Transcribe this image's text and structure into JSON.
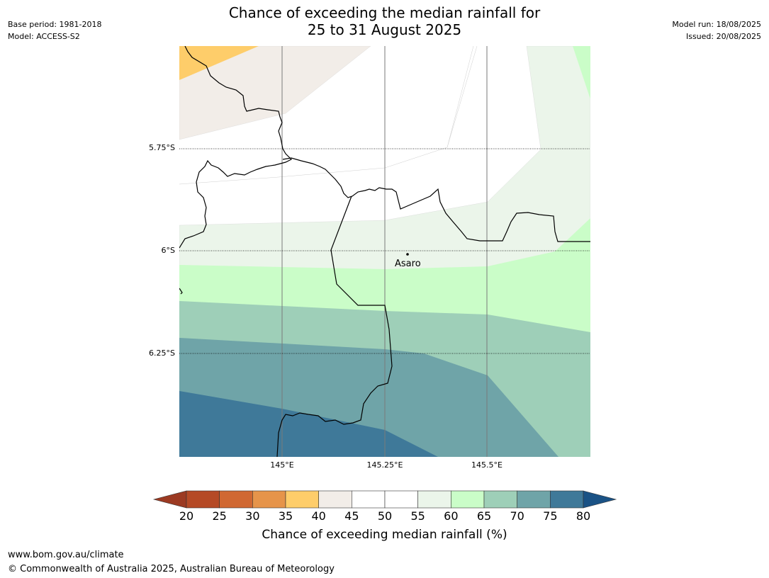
{
  "header": {
    "title_line1": "Chance of exceeding the median rainfall for",
    "title_line2": "25 to 31 August 2025",
    "base_period": "Base period: 1981-2018",
    "model": "Model: ACCESS-S2",
    "model_run": "Model run: 18/08/2025",
    "issued": "Issued: 20/08/2025"
  },
  "map": {
    "lat_labels": [
      "5.75°S",
      "6°S",
      "6.25°S"
    ],
    "lon_labels": [
      "145°E",
      "145.25°E",
      "145.5°E"
    ],
    "place": {
      "name": "Asaro"
    }
  },
  "colorbar": {
    "ticks": [
      "20",
      "25",
      "30",
      "35",
      "40",
      "45",
      "50",
      "55",
      "60",
      "65",
      "70",
      "75",
      "80"
    ],
    "colors": [
      "#9c3a22",
      "#b54a26",
      "#d06832",
      "#e6944a",
      "#fecd6a",
      "#f2ede8",
      "#ffffff",
      "#ffffff",
      "#ebf5ea",
      "#cafdc8",
      "#9ecfb8",
      "#6fa4a8",
      "#3f7999",
      "#1a5285"
    ],
    "caption": "Chance of exceeding median rainfall (%)"
  },
  "footer": {
    "url": "www.bom.gov.au/climate",
    "copyright": "© Commonwealth of Australia 2025, Australian Bureau of Meteorology"
  }
}
